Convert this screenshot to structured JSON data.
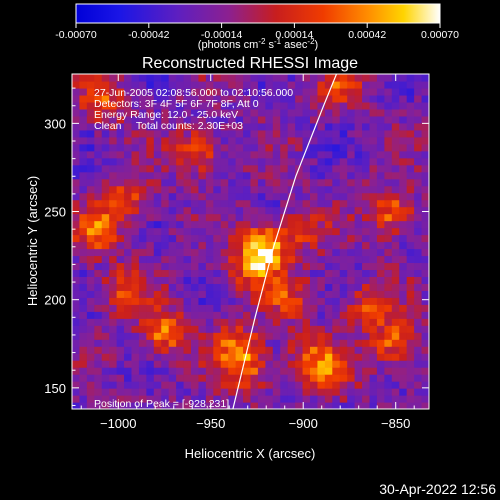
{
  "colorbar": {
    "ticks": [
      "-0.00070",
      "-0.00042",
      "-0.00014",
      "0.00014",
      "0.00042",
      "0.00070"
    ],
    "units_main": "(photons cm",
    "units_exp1": "-2",
    "units_mid": " s",
    "units_exp2": "-1",
    "units_end": " asec",
    "units_exp3": "-2",
    "units_close": ")"
  },
  "chart_data": {
    "type": "heatmap",
    "title": "Reconstructed RHESSI Image",
    "xlabel": "Heliocentric X (arcsec)",
    "ylabel": "Heliocentric Y (arcsec)",
    "xlim": [
      -1025,
      -832
    ],
    "ylim": [
      138,
      328
    ],
    "x_ticks": [
      {
        "value": -1000,
        "label": "−1000"
      },
      {
        "value": -950,
        "label": "−950"
      },
      {
        "value": -900,
        "label": "−900"
      },
      {
        "value": -850,
        "label": "−850"
      }
    ],
    "y_ticks": [
      {
        "value": 150,
        "label": "150"
      },
      {
        "value": 200,
        "label": "200"
      },
      {
        "value": 250,
        "label": "250"
      },
      {
        "value": 300,
        "label": "300"
      }
    ],
    "color_range": [
      -0.0007,
      0.0007
    ],
    "annotations": [
      "27-Jun-2005 02:08:56.000 to 02:10:56.000",
      "Detectors: 3F 4F 5F 6F 7F 8F, Att 0",
      "Energy Range: 12.0 - 25.0 keV",
      "Clean     Total counts: 2.30E+03"
    ],
    "peak_label": "Position of Peak = [-928,231]",
    "peak_position": [
      -928,
      231
    ],
    "limb_curve": [
      [
        -938,
        138
      ],
      [
        -926,
        190
      ],
      [
        -916,
        230
      ],
      [
        -904,
        270
      ],
      [
        -889,
        310
      ],
      [
        -882,
        328
      ]
    ],
    "hotspots": [
      {
        "x": -920,
        "y": 231,
        "amp": 0.00072
      },
      {
        "x": -927,
        "y": 218,
        "amp": 0.00048
      },
      {
        "x": -900,
        "y": 240,
        "amp": 0.0003
      },
      {
        "x": -908,
        "y": 202,
        "amp": 0.00034
      },
      {
        "x": -975,
        "y": 182,
        "amp": 0.00058
      },
      {
        "x": -957,
        "y": 284,
        "amp": 0.0005
      },
      {
        "x": -1008,
        "y": 314,
        "amp": 0.00044
      },
      {
        "x": -1011,
        "y": 240,
        "amp": 0.00052
      },
      {
        "x": -995,
        "y": 258,
        "amp": 0.00045
      },
      {
        "x": -997,
        "y": 206,
        "amp": 0.00038
      },
      {
        "x": -936,
        "y": 174,
        "amp": 0.0005
      },
      {
        "x": -930,
        "y": 160,
        "amp": 0.00042
      },
      {
        "x": -852,
        "y": 250,
        "amp": 0.00055
      },
      {
        "x": -850,
        "y": 175,
        "amp": 0.00052
      },
      {
        "x": -866,
        "y": 196,
        "amp": 0.00042
      },
      {
        "x": -885,
        "y": 160,
        "amp": 0.00042
      },
      {
        "x": -880,
        "y": 322,
        "amp": 0.00038
      },
      {
        "x": -898,
        "y": 168,
        "amp": 0.00036
      }
    ]
  },
  "timestamp": "30-Apr-2022 12:56"
}
